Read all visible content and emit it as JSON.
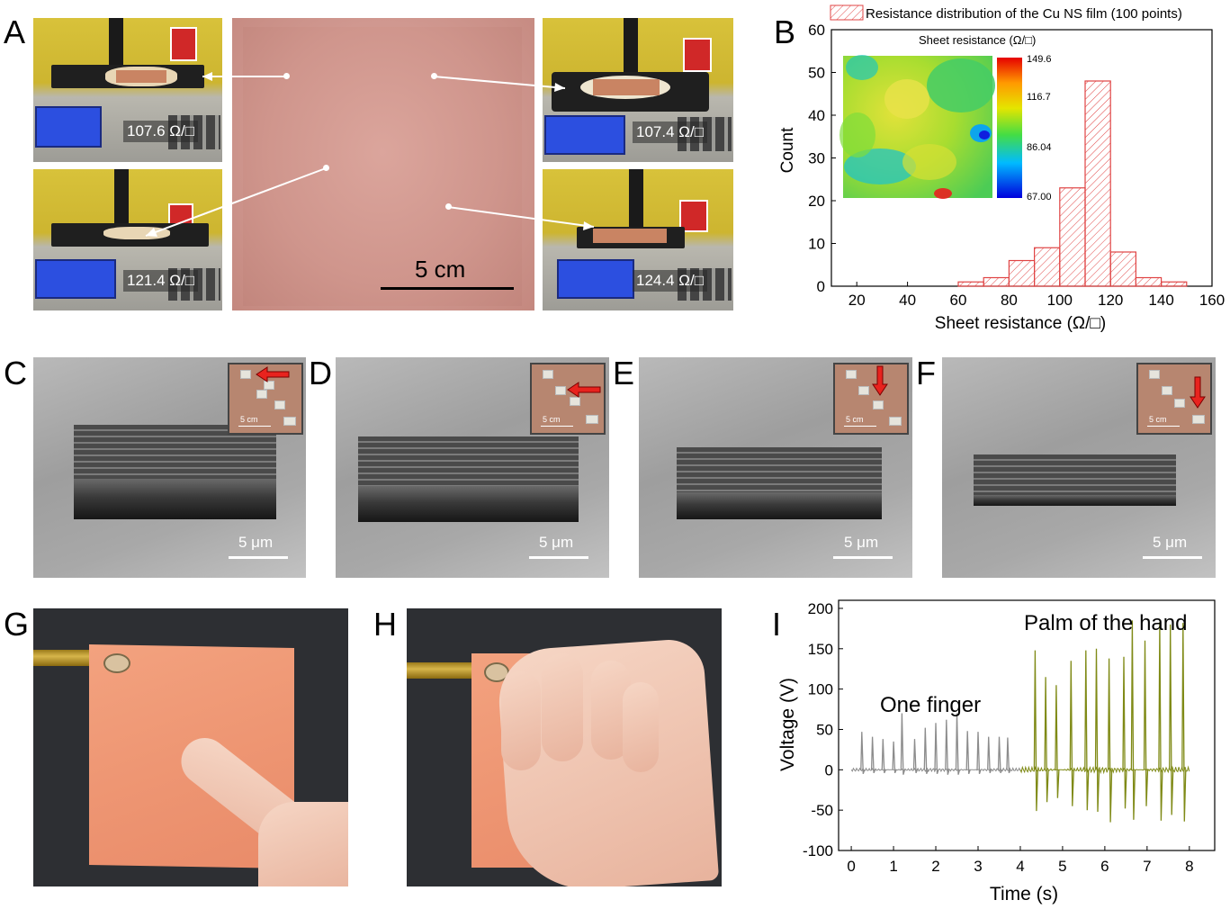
{
  "panel_labels": [
    "A",
    "B",
    "C",
    "D",
    "E",
    "F",
    "G",
    "H",
    "I"
  ],
  "panel_a": {
    "readings": [
      "107.6 Ω/□",
      "107.4 Ω/□",
      "121.4 Ω/□",
      "124.4 Ω/□"
    ],
    "scale_label": "5 cm"
  },
  "panel_b": {
    "legend": "Resistance distribution of the Cu NS film (100 points)",
    "inset_title": "Sheet resistance (Ω/□)",
    "colorbar_ticks": [
      "149.6",
      "116.7",
      "86.04",
      "67.00"
    ]
  },
  "sem": {
    "scale_label": "5 μm",
    "inset_scale_label": "5 cm",
    "arrow_color": "#e8231e"
  },
  "panel_i": {
    "annotation_one_finger": "One finger",
    "annotation_palm": "Palm of the hand"
  },
  "colors": {
    "histogram": "#e04444",
    "finger_trace": "#8c8c8c",
    "palm_trace": "#7f8a16"
  },
  "chart_data": [
    {
      "type": "bar",
      "panel": "B",
      "title": "",
      "xlabel": "Sheet resistance (Ω/□)",
      "ylabel": "Count",
      "xlim": [
        10,
        160
      ],
      "ylim": [
        0,
        60
      ],
      "xticks": [
        20,
        40,
        60,
        80,
        100,
        120,
        140,
        160
      ],
      "yticks": [
        0,
        10,
        20,
        30,
        40,
        50,
        60
      ],
      "bin_width": 10,
      "bin_starts": [
        60,
        70,
        80,
        90,
        100,
        110,
        120,
        130,
        140
      ],
      "values": [
        1,
        2,
        6,
        9,
        23,
        48,
        8,
        2,
        1
      ],
      "series": [
        {
          "name": "Resistance distribution of the Cu NS film (100 points)",
          "values": [
            1,
            2,
            6,
            9,
            23,
            48,
            8,
            2,
            1
          ]
        }
      ],
      "legend_position": "top"
    },
    {
      "type": "line",
      "panel": "I",
      "title": "",
      "xlabel": "Time (s)",
      "ylabel": "Voltage (V)",
      "xlim": [
        -0.3,
        8.6
      ],
      "ylim": [
        -100,
        210
      ],
      "xticks": [
        0,
        1,
        2,
        3,
        4,
        5,
        6,
        7,
        8
      ],
      "yticks": [
        -100,
        -50,
        0,
        50,
        100,
        150,
        200
      ],
      "series": [
        {
          "label": "One finger",
          "x_range": [
            0,
            4
          ],
          "peak_times": [
            0.25,
            0.5,
            0.75,
            1.0,
            1.2,
            1.5,
            1.75,
            2.0,
            2.25,
            2.5,
            2.75,
            3.0,
            3.25,
            3.5,
            3.7
          ],
          "peak_values": [
            47,
            41,
            38,
            35,
            70,
            38,
            52,
            58,
            62,
            70,
            48,
            47,
            41,
            41,
            40
          ],
          "trough_values": [
            -5,
            -4,
            -4,
            -4,
            -6,
            -4,
            -5,
            -5,
            -6,
            -6,
            -5,
            -5,
            -4,
            -4,
            -4
          ]
        },
        {
          "label": "Palm of the hand",
          "x_range": [
            4,
            8
          ],
          "peak_times": [
            4.35,
            4.6,
            4.85,
            5.2,
            5.55,
            5.8,
            6.1,
            6.45,
            6.65,
            6.95,
            7.3,
            7.55,
            7.85
          ],
          "peak_values": [
            148,
            115,
            105,
            135,
            148,
            150,
            138,
            140,
            185,
            160,
            183,
            180,
            182
          ],
          "trough_values": [
            -51,
            -40,
            -35,
            -45,
            -50,
            -52,
            -65,
            -48,
            -62,
            -45,
            -63,
            -56,
            -64
          ]
        }
      ]
    }
  ]
}
